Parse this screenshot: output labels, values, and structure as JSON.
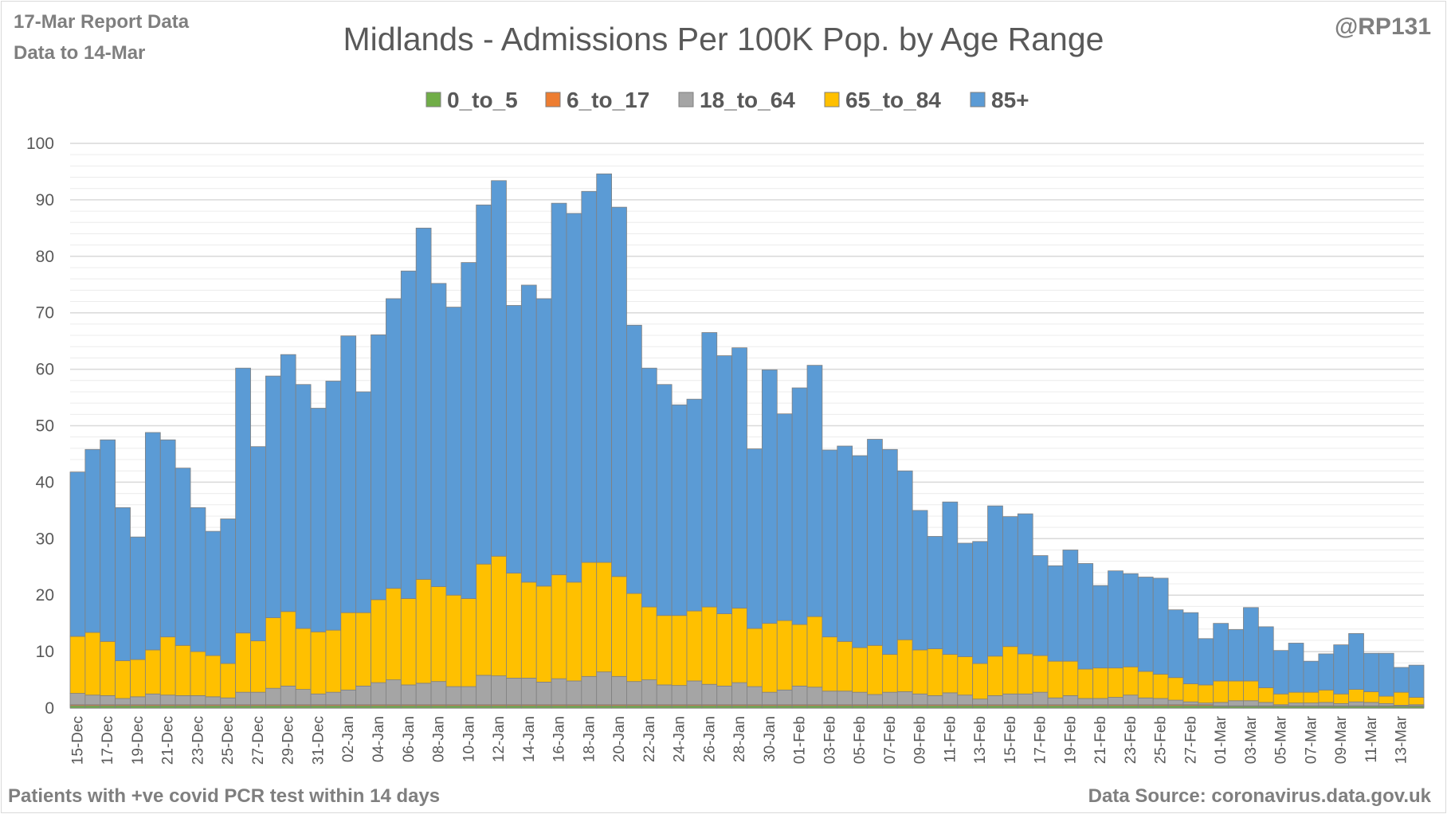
{
  "header": {
    "report_label": "17-Mar Report Data",
    "data_to_label": "Data to 14-Mar",
    "handle": "@RP131",
    "footnote": "Patients with  +ve covid PCR test within 14 days",
    "source": "Data Source: coronavirus.data.gov.uk"
  },
  "chart_data": {
    "type": "bar",
    "stacked": true,
    "title": "Midlands - Admissions Per 100K Pop. by Age Range",
    "xlabel": "",
    "ylabel": "",
    "ylim": [
      0,
      100
    ],
    "ytick_step": 10,
    "grid": true,
    "legend_position": "top-center",
    "categories": [
      "15-Dec",
      "16-Dec",
      "17-Dec",
      "18-Dec",
      "19-Dec",
      "20-Dec",
      "21-Dec",
      "22-Dec",
      "23-Dec",
      "24-Dec",
      "25-Dec",
      "26-Dec",
      "27-Dec",
      "28-Dec",
      "29-Dec",
      "30-Dec",
      "31-Dec",
      "01-Jan",
      "02-Jan",
      "03-Jan",
      "04-Jan",
      "05-Jan",
      "06-Jan",
      "07-Jan",
      "08-Jan",
      "09-Jan",
      "10-Jan",
      "11-Jan",
      "12-Jan",
      "13-Jan",
      "14-Jan",
      "15-Jan",
      "16-Jan",
      "17-Jan",
      "18-Jan",
      "19-Jan",
      "20-Jan",
      "21-Jan",
      "22-Jan",
      "23-Jan",
      "24-Jan",
      "25-Jan",
      "26-Jan",
      "27-Jan",
      "28-Jan",
      "29-Jan",
      "30-Jan",
      "31-Jan",
      "01-Feb",
      "02-Feb",
      "03-Feb",
      "04-Feb",
      "05-Feb",
      "06-Feb",
      "07-Feb",
      "08-Feb",
      "09-Feb",
      "10-Feb",
      "11-Feb",
      "12-Feb",
      "13-Feb",
      "14-Feb",
      "15-Feb",
      "16-Feb",
      "17-Feb",
      "18-Feb",
      "19-Feb",
      "20-Feb",
      "21-Feb",
      "22-Feb",
      "23-Feb",
      "24-Feb",
      "25-Feb",
      "26-Feb",
      "27-Feb",
      "28-Feb",
      "01-Mar",
      "02-Mar",
      "03-Mar",
      "04-Mar",
      "05-Mar",
      "06-Mar",
      "07-Mar",
      "08-Mar",
      "09-Mar",
      "10-Mar",
      "11-Mar",
      "12-Mar",
      "13-Mar",
      "14-Mar"
    ],
    "series": [
      {
        "name": "0_to_5",
        "color": "#70ad47",
        "values": [
          0.4,
          0.4,
          0.4,
          0.4,
          0.4,
          0.4,
          0.4,
          0.4,
          0.4,
          0.4,
          0.4,
          0.4,
          0.4,
          0.4,
          0.4,
          0.4,
          0.4,
          0.4,
          0.4,
          0.4,
          0.4,
          0.4,
          0.4,
          0.4,
          0.4,
          0.4,
          0.4,
          0.4,
          0.4,
          0.4,
          0.4,
          0.4,
          0.4,
          0.4,
          0.4,
          0.4,
          0.4,
          0.4,
          0.4,
          0.4,
          0.4,
          0.4,
          0.4,
          0.4,
          0.4,
          0.4,
          0.4,
          0.4,
          0.4,
          0.4,
          0.4,
          0.4,
          0.4,
          0.4,
          0.4,
          0.4,
          0.4,
          0.4,
          0.4,
          0.4,
          0.4,
          0.4,
          0.4,
          0.4,
          0.4,
          0.4,
          0.4,
          0.4,
          0.4,
          0.4,
          0.4,
          0.4,
          0.4,
          0.4,
          0.4,
          0.4,
          0.3,
          0.3,
          0.3,
          0.3,
          0.3,
          0.3,
          0.3,
          0.3,
          0.3,
          0.3,
          0.3,
          0.3,
          0.3,
          0.3
        ]
      },
      {
        "name": "6_to_17",
        "color": "#ed7d31",
        "values": [
          0.2,
          0.2,
          0.2,
          0.2,
          0.2,
          0.2,
          0.2,
          0.2,
          0.2,
          0.2,
          0.2,
          0.2,
          0.2,
          0.2,
          0.2,
          0.2,
          0.2,
          0.2,
          0.2,
          0.2,
          0.2,
          0.2,
          0.2,
          0.2,
          0.2,
          0.2,
          0.2,
          0.2,
          0.2,
          0.2,
          0.2,
          0.2,
          0.2,
          0.2,
          0.2,
          0.2,
          0.2,
          0.2,
          0.2,
          0.2,
          0.2,
          0.2,
          0.2,
          0.2,
          0.2,
          0.2,
          0.2,
          0.2,
          0.2,
          0.2,
          0.2,
          0.2,
          0.2,
          0.2,
          0.2,
          0.2,
          0.2,
          0.2,
          0.2,
          0.2,
          0.2,
          0.2,
          0.2,
          0.2,
          0.2,
          0.2,
          0.2,
          0.2,
          0.2,
          0.2,
          0.2,
          0.2,
          0.2,
          0.2,
          0.2,
          0.2,
          0.1,
          0.1,
          0.1,
          0.1,
          0.1,
          0.1,
          0.1,
          0.1,
          0.1,
          0.1,
          0.1,
          0.1,
          0.1,
          0.1
        ]
      },
      {
        "name": "18_to_64",
        "color": "#a5a5a5",
        "values": [
          2.0,
          1.7,
          1.6,
          1.1,
          1.4,
          1.9,
          1.7,
          1.6,
          1.6,
          1.4,
          1.2,
          2.2,
          2.2,
          2.9,
          3.3,
          2.7,
          1.9,
          2.2,
          2.6,
          3.3,
          3.9,
          4.4,
          3.5,
          3.8,
          4.1,
          3.2,
          3.2,
          5.2,
          5.1,
          4.7,
          4.7,
          4.0,
          4.6,
          4.2,
          5.0,
          5.8,
          5.0,
          4.1,
          4.4,
          3.5,
          3.4,
          4.2,
          3.6,
          3.3,
          3.9,
          3.2,
          2.2,
          2.6,
          3.3,
          3.1,
          2.4,
          2.4,
          2.2,
          1.8,
          2.2,
          2.3,
          1.9,
          1.6,
          2.1,
          1.7,
          1.0,
          1.6,
          1.9,
          1.9,
          2.2,
          1.2,
          1.6,
          1.1,
          1.1,
          1.3,
          1.7,
          1.2,
          1.1,
          0.8,
          0.5,
          0.3,
          0.6,
          0.9,
          0.9,
          0.6,
          0.2,
          0.5,
          0.5,
          0.6,
          0.4,
          0.7,
          0.6,
          0.4,
          0.1,
          0.2
        ]
      },
      {
        "name": "65_to_84",
        "color": "#ffc000",
        "values": [
          10.1,
          11.1,
          9.6,
          6.7,
          6.6,
          7.8,
          10.3,
          8.9,
          7.8,
          7.3,
          6.1,
          10.5,
          9.1,
          12.5,
          13.2,
          10.8,
          11.0,
          11.0,
          13.7,
          13.0,
          14.7,
          16.2,
          15.3,
          18.4,
          16.8,
          16.2,
          15.6,
          19.7,
          21.2,
          18.6,
          17.0,
          17.0,
          18.4,
          17.5,
          20.2,
          19.4,
          17.7,
          15.6,
          12.9,
          12.3,
          12.4,
          12.4,
          13.7,
          12.8,
          13.2,
          10.3,
          12.2,
          12.3,
          10.9,
          12.5,
          9.6,
          8.8,
          7.9,
          8.7,
          6.7,
          9.2,
          7.8,
          8.3,
          6.8,
          6.8,
          6.3,
          7.0,
          8.4,
          7.1,
          6.5,
          6.5,
          6.1,
          5.2,
          5.4,
          5.2,
          5.0,
          4.7,
          4.3,
          4.0,
          3.2,
          3.2,
          3.8,
          3.5,
          3.5,
          2.6,
          1.9,
          1.9,
          1.9,
          2.2,
          1.7,
          2.2,
          1.9,
          1.3,
          2.3,
          1.3
        ]
      },
      {
        "name": "85+",
        "color": "#5b9bd5",
        "values": [
          29.1,
          32.4,
          35.7,
          27.1,
          21.7,
          38.5,
          34.9,
          31.4,
          25.5,
          22.0,
          25.6,
          46.9,
          34.4,
          42.8,
          45.5,
          43.2,
          39.6,
          44.1,
          49.0,
          39.1,
          46.9,
          51.3,
          58.0,
          62.2,
          53.7,
          51.0,
          59.5,
          63.6,
          66.5,
          47.4,
          52.6,
          50.9,
          65.8,
          65.3,
          65.7,
          68.8,
          65.4,
          47.5,
          42.3,
          40.9,
          37.3,
          37.5,
          48.6,
          45.7,
          46.1,
          31.8,
          44.9,
          36.6,
          41.9,
          44.5,
          33.1,
          34.6,
          34.0,
          36.5,
          36.3,
          29.9,
          24.7,
          19.9,
          27.0,
          20.1,
          21.6,
          26.6,
          23.0,
          24.8,
          17.7,
          16.9,
          19.7,
          18.7,
          14.6,
          17.2,
          16.5,
          16.7,
          17.0,
          12.0,
          12.6,
          8.2,
          10.2,
          9.1,
          13.0,
          10.8,
          7.7,
          8.7,
          5.5,
          6.4,
          8.7,
          9.9,
          6.8,
          7.6,
          4.4,
          5.7
        ]
      }
    ]
  }
}
